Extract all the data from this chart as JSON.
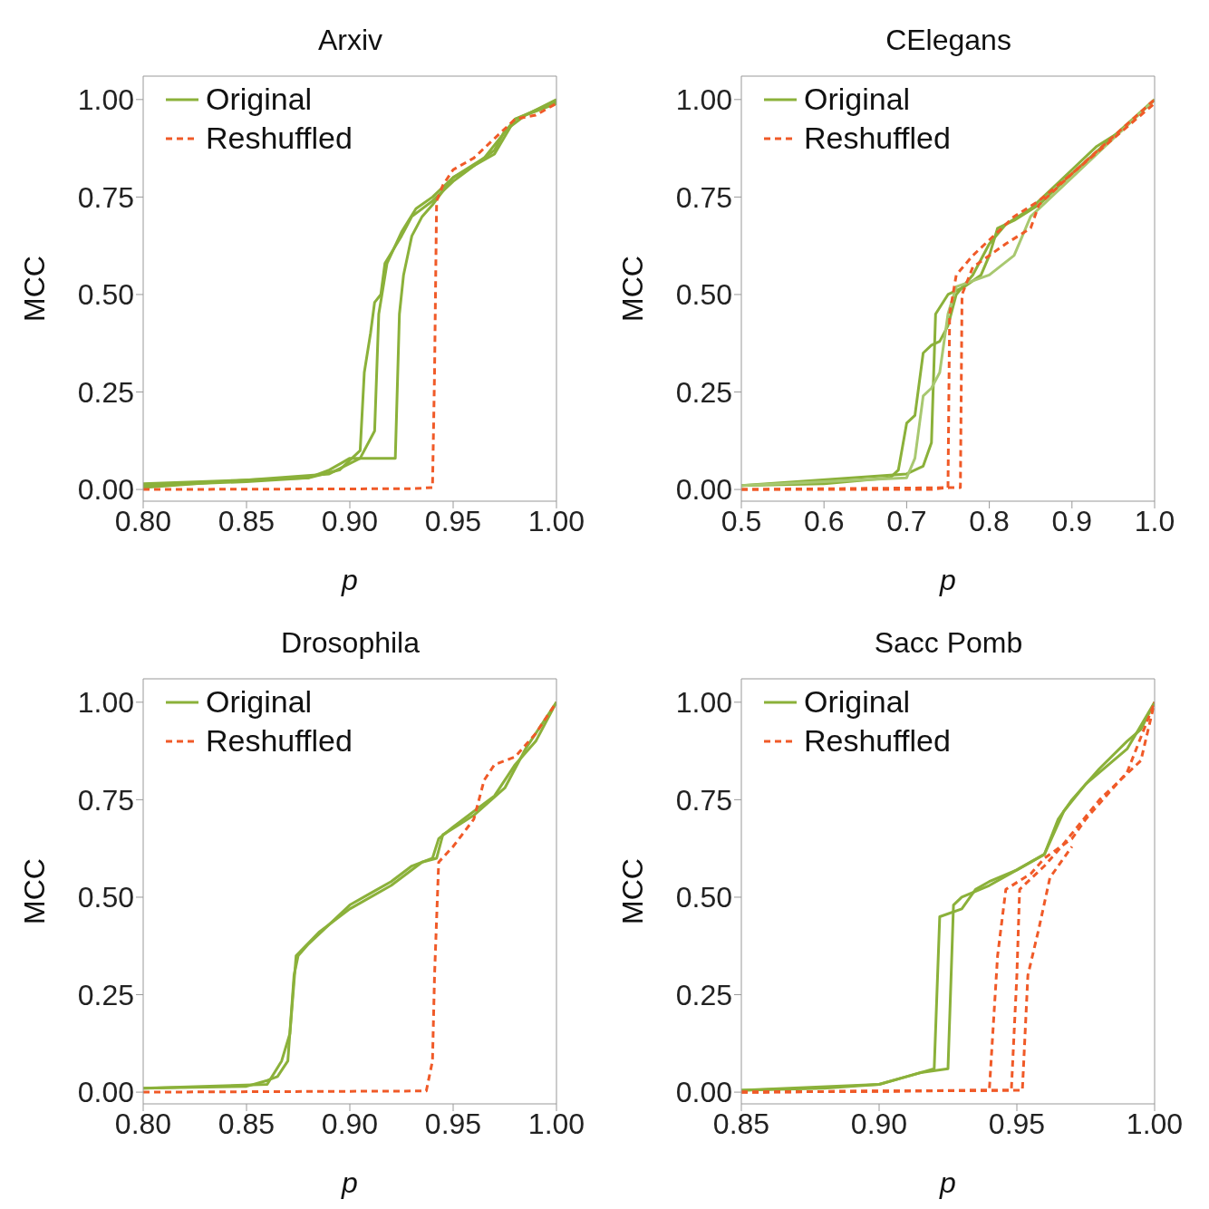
{
  "chart_data": [
    {
      "type": "line",
      "title": "Arxiv",
      "xlabel": "p",
      "ylabel": "MCC",
      "xlim": [
        0.8,
        1.0
      ],
      "ylim": [
        -0.03,
        1.06
      ],
      "xticks": [
        {
          "value": 0.8,
          "label": "0.80"
        },
        {
          "value": 0.85,
          "label": "0.85"
        },
        {
          "value": 0.9,
          "label": "0.90"
        },
        {
          "value": 0.95,
          "label": "0.95"
        },
        {
          "value": 1.0,
          "label": "1.00"
        }
      ],
      "yticks": [
        {
          "value": 0,
          "label": "0.00"
        },
        {
          "value": 0.25,
          "label": "0.25"
        },
        {
          "value": 0.5,
          "label": "0.50"
        },
        {
          "value": 0.75,
          "label": "0.75"
        },
        {
          "value": 1,
          "label": "1.00"
        }
      ],
      "legend": "top left",
      "series": [
        {
          "name": "Original",
          "color": "#8bb13a",
          "line_style": "solid",
          "x": [
            0.8,
            0.85,
            0.88,
            0.895,
            0.905,
            0.907,
            0.91,
            0.912,
            0.915,
            0.917,
            0.925,
            0.93,
            0.94,
            0.95,
            0.96,
            0.97,
            0.975,
            0.985,
            1.0
          ],
          "values": [
            0.01,
            0.02,
            0.03,
            0.05,
            0.1,
            0.3,
            0.4,
            0.48,
            0.5,
            0.58,
            0.65,
            0.7,
            0.74,
            0.79,
            0.83,
            0.87,
            0.92,
            0.96,
            1.0
          ]
        },
        {
          "color": "#8bb13a",
          "line_style": "solid",
          "x": [
            0.8,
            0.88,
            0.89,
            0.9,
            0.922,
            0.924,
            0.926,
            0.93,
            0.935,
            0.94,
            0.95,
            0.97,
            0.98,
            1.0
          ],
          "values": [
            0.015,
            0.03,
            0.05,
            0.08,
            0.08,
            0.45,
            0.55,
            0.65,
            0.7,
            0.73,
            0.8,
            0.86,
            0.95,
            0.995
          ]
        },
        {
          "color": "#8bb13a",
          "line_style": "solid",
          "x": [
            0.8,
            0.89,
            0.905,
            0.912,
            0.914,
            0.918,
            0.925,
            0.932,
            0.94,
            0.95,
            0.965,
            0.98,
            1.0
          ],
          "values": [
            0.005,
            0.04,
            0.08,
            0.15,
            0.45,
            0.58,
            0.66,
            0.72,
            0.75,
            0.8,
            0.85,
            0.95,
            0.99
          ]
        },
        {
          "name": "Reshuffled",
          "color": "#f05a28",
          "line_style": "dashed",
          "x": [
            0.8,
            0.93,
            0.94,
            0.941,
            0.942,
            0.945,
            0.95,
            0.96,
            0.97,
            0.98,
            0.99,
            1.0
          ],
          "values": [
            0.0,
            0.002,
            0.005,
            0.3,
            0.74,
            0.78,
            0.82,
            0.85,
            0.9,
            0.95,
            0.96,
            0.99
          ]
        }
      ]
    },
    {
      "type": "line",
      "title": "CElegans",
      "xlabel": "p",
      "ylabel": "MCC",
      "xlim": [
        0.5,
        1.0
      ],
      "ylim": [
        -0.03,
        1.06
      ],
      "xticks": [
        {
          "value": 0.5,
          "label": "0.5"
        },
        {
          "value": 0.6,
          "label": "0.6"
        },
        {
          "value": 0.7,
          "label": "0.7"
        },
        {
          "value": 0.8,
          "label": "0.8"
        },
        {
          "value": 0.9,
          "label": "0.9"
        },
        {
          "value": 1.0,
          "label": "1.0"
        }
      ],
      "yticks": [
        {
          "value": 0,
          "label": "0.00"
        },
        {
          "value": 0.25,
          "label": "0.25"
        },
        {
          "value": 0.5,
          "label": "0.50"
        },
        {
          "value": 0.75,
          "label": "0.75"
        },
        {
          "value": 1,
          "label": "1.00"
        }
      ],
      "legend": "top left",
      "series": [
        {
          "name": "Original",
          "color": "#8bb13a",
          "line_style": "solid",
          "x": [
            0.5,
            0.6,
            0.68,
            0.69,
            0.7,
            0.71,
            0.72,
            0.73,
            0.74,
            0.75,
            0.76,
            0.78,
            0.8,
            0.82,
            0.85,
            0.88,
            0.9,
            0.93,
            0.96,
            1.0
          ],
          "values": [
            0.01,
            0.015,
            0.03,
            0.05,
            0.17,
            0.19,
            0.35,
            0.37,
            0.38,
            0.42,
            0.5,
            0.55,
            0.63,
            0.68,
            0.72,
            0.78,
            0.82,
            0.88,
            0.92,
            1.0
          ]
        },
        {
          "color": "#8bb13a",
          "line_style": "solid",
          "x": [
            0.5,
            0.7,
            0.72,
            0.73,
            0.735,
            0.75,
            0.77,
            0.79,
            0.8,
            0.81,
            0.83,
            0.86,
            0.9,
            1.0
          ],
          "values": [
            0.01,
            0.04,
            0.06,
            0.12,
            0.45,
            0.5,
            0.52,
            0.55,
            0.6,
            0.67,
            0.69,
            0.73,
            0.81,
            1.0
          ]
        },
        {
          "color": "#a8c870",
          "line_style": "solid",
          "x": [
            0.5,
            0.7,
            0.71,
            0.72,
            0.73,
            0.74,
            0.75,
            0.76,
            0.8,
            0.83,
            0.85,
            0.9,
            1.0
          ],
          "values": [
            0.01,
            0.03,
            0.08,
            0.24,
            0.26,
            0.3,
            0.45,
            0.52,
            0.55,
            0.6,
            0.7,
            0.8,
            1.0
          ]
        },
        {
          "name": "Reshuffled",
          "color": "#f05a28",
          "line_style": "dashed",
          "x": [
            0.5,
            0.73,
            0.75,
            0.752,
            0.76,
            0.78,
            0.8,
            0.83,
            0.86,
            0.9,
            0.95,
            1.0
          ],
          "values": [
            0.0,
            0.0,
            0.005,
            0.45,
            0.55,
            0.6,
            0.64,
            0.7,
            0.74,
            0.81,
            0.9,
            0.99
          ]
        },
        {
          "color": "#f05a28",
          "line_style": "dashed",
          "x": [
            0.5,
            0.765,
            0.767,
            0.78,
            0.8,
            0.82,
            0.85,
            0.86,
            0.9,
            1.0
          ],
          "values": [
            0.0,
            0.005,
            0.5,
            0.57,
            0.6,
            0.63,
            0.67,
            0.73,
            0.81,
            1.0
          ]
        }
      ]
    },
    {
      "type": "line",
      "title": "Drosophila",
      "xlabel": "p",
      "ylabel": "MCC",
      "xlim": [
        0.8,
        1.0
      ],
      "ylim": [
        -0.03,
        1.06
      ],
      "xticks": [
        {
          "value": 0.8,
          "label": "0.80"
        },
        {
          "value": 0.85,
          "label": "0.85"
        },
        {
          "value": 0.9,
          "label": "0.90"
        },
        {
          "value": 0.95,
          "label": "0.95"
        },
        {
          "value": 1.0,
          "label": "1.00"
        }
      ],
      "yticks": [
        {
          "value": 0,
          "label": "0.00"
        },
        {
          "value": 0.25,
          "label": "0.25"
        },
        {
          "value": 0.5,
          "label": "0.50"
        },
        {
          "value": 0.75,
          "label": "0.75"
        },
        {
          "value": 1,
          "label": "1.00"
        }
      ],
      "legend": "top left",
      "series": [
        {
          "name": "Original",
          "color": "#8bb13a",
          "line_style": "solid",
          "x": [
            0.8,
            0.85,
            0.86,
            0.865,
            0.87,
            0.873,
            0.875,
            0.88,
            0.89,
            0.9,
            0.91,
            0.92,
            0.93,
            0.94,
            0.943,
            0.95,
            0.96,
            0.97,
            0.98,
            0.99,
            1.0
          ],
          "values": [
            0.01,
            0.015,
            0.03,
            0.04,
            0.08,
            0.3,
            0.35,
            0.38,
            0.43,
            0.48,
            0.51,
            0.54,
            0.58,
            0.6,
            0.65,
            0.68,
            0.72,
            0.76,
            0.84,
            0.9,
            1.0
          ]
        },
        {
          "color": "#8bb13a",
          "line_style": "solid",
          "x": [
            0.8,
            0.86,
            0.867,
            0.871,
            0.874,
            0.885,
            0.9,
            0.92,
            0.935,
            0.942,
            0.945,
            0.96,
            0.975,
            0.985,
            1.0
          ],
          "values": [
            0.01,
            0.02,
            0.08,
            0.15,
            0.35,
            0.41,
            0.47,
            0.53,
            0.59,
            0.6,
            0.66,
            0.71,
            0.78,
            0.88,
            1.0
          ]
        },
        {
          "name": "Reshuffled",
          "color": "#f05a28",
          "line_style": "dashed",
          "x": [
            0.8,
            0.937,
            0.94,
            0.941,
            0.943,
            0.95,
            0.96,
            0.965,
            0.97,
            0.98,
            0.99,
            1.0
          ],
          "values": [
            0.0,
            0.003,
            0.08,
            0.3,
            0.59,
            0.63,
            0.7,
            0.8,
            0.84,
            0.86,
            0.92,
            1.0
          ]
        }
      ]
    },
    {
      "type": "line",
      "title": "Sacc Pomb",
      "xlabel": "p",
      "ylabel": "MCC",
      "xlim": [
        0.85,
        1.0
      ],
      "ylim": [
        -0.03,
        1.06
      ],
      "xticks": [
        {
          "value": 0.85,
          "label": "0.85"
        },
        {
          "value": 0.9,
          "label": "0.90"
        },
        {
          "value": 0.95,
          "label": "0.95"
        },
        {
          "value": 1.0,
          "label": "1.00"
        }
      ],
      "yticks": [
        {
          "value": 0,
          "label": "0.00"
        },
        {
          "value": 0.25,
          "label": "0.25"
        },
        {
          "value": 0.5,
          "label": "0.50"
        },
        {
          "value": 0.75,
          "label": "0.75"
        },
        {
          "value": 1,
          "label": "1.00"
        }
      ],
      "legend": "top left",
      "series": [
        {
          "name": "Original",
          "color": "#8bb13a",
          "line_style": "solid",
          "x": [
            0.85,
            0.88,
            0.9,
            0.91,
            0.92,
            0.922,
            0.93,
            0.935,
            0.94,
            0.95,
            0.96,
            0.965,
            0.97,
            0.98,
            0.99,
            0.995,
            1.0
          ],
          "values": [
            0.005,
            0.01,
            0.02,
            0.04,
            0.06,
            0.45,
            0.47,
            0.52,
            0.54,
            0.57,
            0.61,
            0.7,
            0.75,
            0.83,
            0.9,
            0.93,
            1.0
          ]
        },
        {
          "color": "#8bb13a",
          "line_style": "solid",
          "x": [
            0.85,
            0.9,
            0.915,
            0.925,
            0.927,
            0.93,
            0.94,
            0.95,
            0.96,
            0.967,
            0.975,
            0.99,
            1.0
          ],
          "values": [
            0.005,
            0.02,
            0.05,
            0.06,
            0.48,
            0.5,
            0.53,
            0.57,
            0.61,
            0.72,
            0.79,
            0.88,
            1.0
          ]
        },
        {
          "name": "Reshuffled",
          "color": "#f05a28",
          "line_style": "dashed",
          "x": [
            0.85,
            0.94,
            0.943,
            0.946,
            0.955,
            0.96,
            0.97,
            0.975,
            0.99,
            1.0
          ],
          "values": [
            0.0,
            0.005,
            0.35,
            0.52,
            0.56,
            0.6,
            0.65,
            0.7,
            0.82,
            1.0
          ]
        },
        {
          "color": "#f05a28",
          "line_style": "dashed",
          "x": [
            0.85,
            0.948,
            0.95,
            0.951,
            0.96,
            0.965,
            0.98,
            0.995,
            1.0
          ],
          "values": [
            0.0,
            0.005,
            0.3,
            0.52,
            0.58,
            0.62,
            0.75,
            0.85,
            1.0
          ]
        },
        {
          "color": "#f05a28",
          "line_style": "dashed",
          "x": [
            0.85,
            0.952,
            0.954,
            0.958,
            0.962,
            0.97
          ],
          "values": [
            0.0,
            0.005,
            0.3,
            0.42,
            0.55,
            0.63
          ]
        }
      ]
    }
  ]
}
